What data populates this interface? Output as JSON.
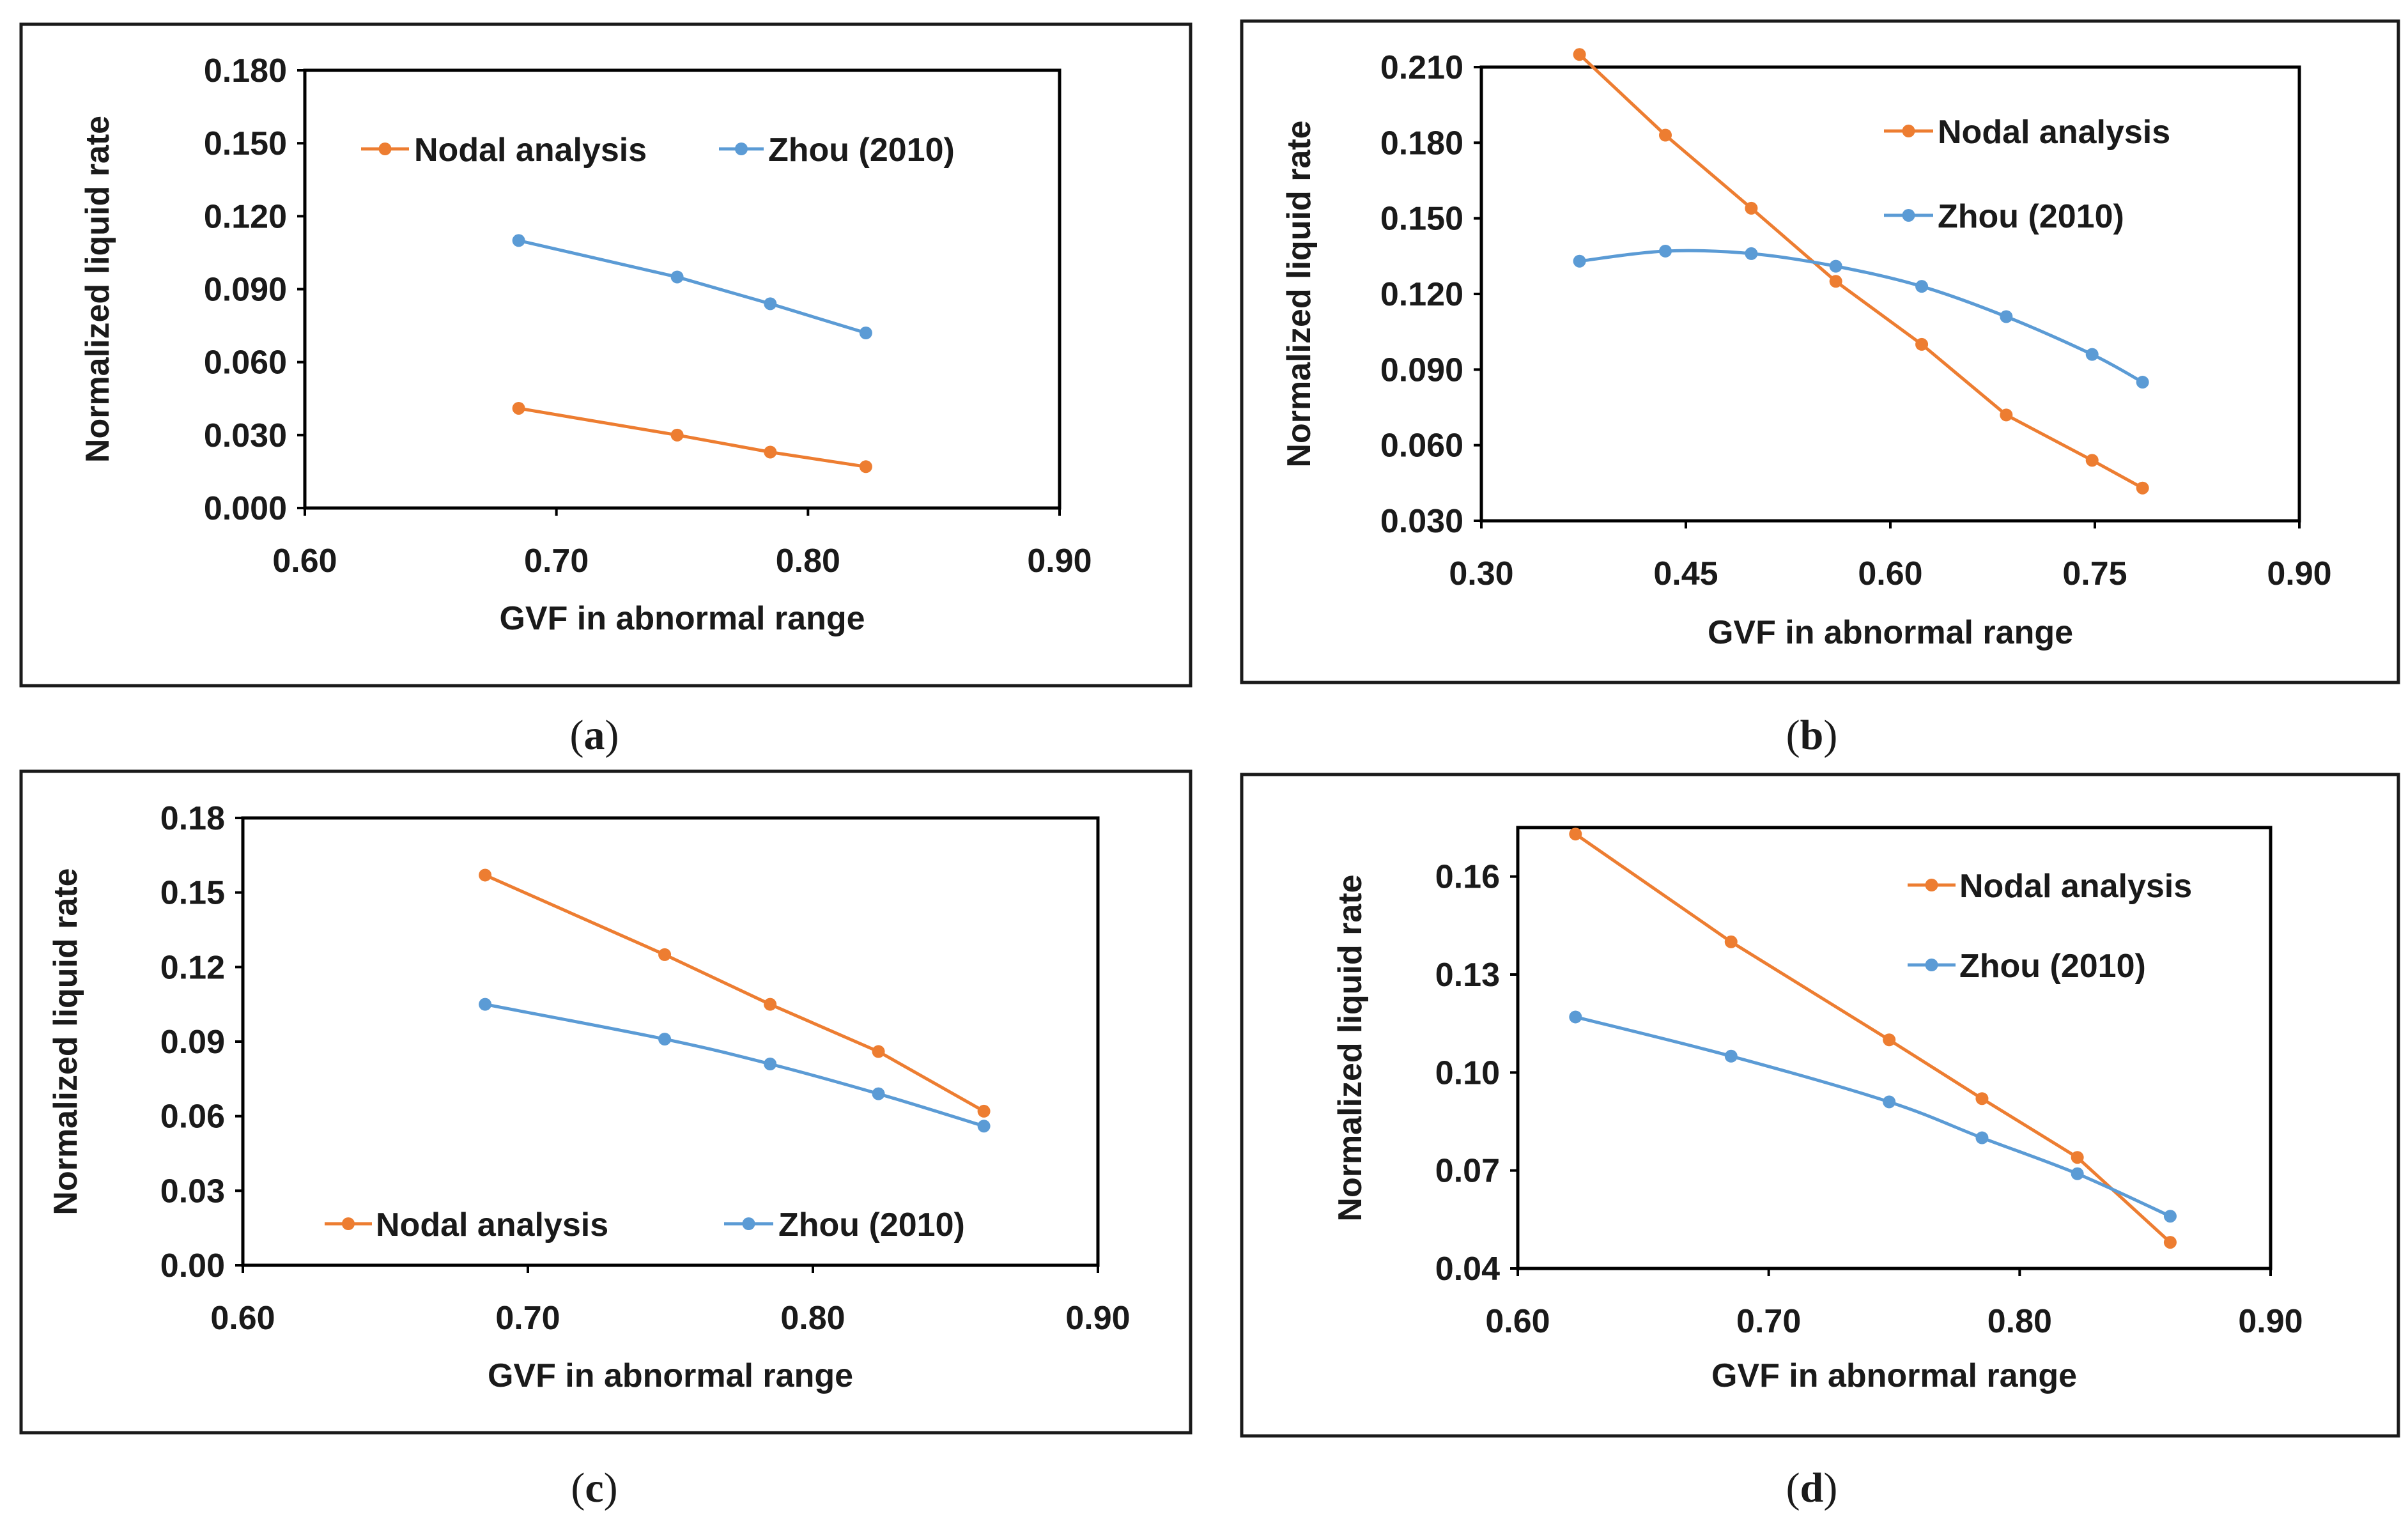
{
  "figure": {
    "series_colors": {
      "Nodal analysis": "#ED7D31",
      "Zhou (2010)": "#5B9BD5"
    }
  },
  "chart_data": [
    {
      "panel": "a",
      "caption": "(a)",
      "caption_letter": "a",
      "type": "line",
      "xlabel": "GVF in abnormal range",
      "ylabel": "Normalized liquid rate",
      "xlim": [
        0.6,
        0.9
      ],
      "ylim": [
        0.0,
        0.18
      ],
      "xticks": [
        "0.60",
        "0.70",
        "0.80",
        "0.90"
      ],
      "yticks": [
        "0.000",
        "0.030",
        "0.060",
        "0.090",
        "0.120",
        "0.150",
        "0.180"
      ],
      "legend_position": "top-inline",
      "series": [
        {
          "name": "Nodal analysis",
          "color": "#ED7D31",
          "smooth": false,
          "x": [
            0.685,
            0.748,
            0.785,
            0.823
          ],
          "y": [
            0.041,
            0.03,
            0.023,
            0.017
          ]
        },
        {
          "name": "Zhou (2010)",
          "color": "#5B9BD5",
          "smooth": false,
          "x": [
            0.685,
            0.748,
            0.785,
            0.823
          ],
          "y": [
            0.11,
            0.095,
            0.084,
            0.072
          ]
        }
      ]
    },
    {
      "panel": "b",
      "caption": "(b)",
      "caption_letter": "b",
      "type": "line",
      "xlabel": "GVF in abnormal range",
      "ylabel": "Normalized liquid rate",
      "xlim": [
        0.3,
        0.9
      ],
      "ylim": [
        0.03,
        0.21
      ],
      "xticks": [
        "0.30",
        "0.45",
        "0.60",
        "0.75",
        "0.90"
      ],
      "yticks": [
        "0.030",
        "0.060",
        "0.090",
        "0.120",
        "0.150",
        "0.180",
        "0.210"
      ],
      "legend_position": "top-right-stacked",
      "series": [
        {
          "name": "Nodal analysis",
          "color": "#ED7D31",
          "smooth": false,
          "x": [
            0.372,
            0.435,
            0.498,
            0.56,
            0.623,
            0.685,
            0.748,
            0.785
          ],
          "y": [
            0.215,
            0.183,
            0.154,
            0.125,
            0.1,
            0.072,
            0.054,
            0.043
          ]
        },
        {
          "name": "Zhou (2010)",
          "color": "#5B9BD5",
          "smooth": true,
          "x": [
            0.372,
            0.435,
            0.498,
            0.56,
            0.623,
            0.685,
            0.748,
            0.785
          ],
          "y": [
            0.133,
            0.137,
            0.136,
            0.131,
            0.123,
            0.111,
            0.096,
            0.085
          ]
        }
      ]
    },
    {
      "panel": "c",
      "caption": "(c)",
      "caption_letter": "c",
      "type": "line",
      "xlabel": "GVF in abnormal range",
      "ylabel": "Normalized liquid rate",
      "xlim": [
        0.6,
        0.9
      ],
      "ylim": [
        0.0,
        0.18
      ],
      "xticks": [
        "0.60",
        "0.70",
        "0.80",
        "0.90"
      ],
      "yticks": [
        "0.00",
        "0.03",
        "0.06",
        "0.09",
        "0.12",
        "0.15",
        "0.18"
      ],
      "legend_position": "bottom-inline",
      "series": [
        {
          "name": "Nodal analysis",
          "color": "#ED7D31",
          "smooth": false,
          "x": [
            0.685,
            0.748,
            0.785,
            0.823,
            0.86
          ],
          "y": [
            0.157,
            0.125,
            0.105,
            0.086,
            0.062
          ]
        },
        {
          "name": "Zhou (2010)",
          "color": "#5B9BD5",
          "smooth": true,
          "x": [
            0.685,
            0.748,
            0.785,
            0.823,
            0.86
          ],
          "y": [
            0.105,
            0.091,
            0.081,
            0.069,
            0.056
          ]
        }
      ]
    },
    {
      "panel": "d",
      "caption": "(d)",
      "caption_letter": "d",
      "type": "line",
      "xlabel": "GVF in abnormal range",
      "ylabel": "Normalized liquid rate",
      "xlim": [
        0.6,
        0.9
      ],
      "ylim": [
        0.04,
        0.175
      ],
      "xticks": [
        "0.60",
        "0.70",
        "0.80",
        "0.90"
      ],
      "yticks": [
        "0.04",
        "0.07",
        "0.10",
        "0.13",
        "0.16"
      ],
      "ytick_values": [
        0.04,
        0.07,
        0.1,
        0.13,
        0.16
      ],
      "legend_position": "top-right-stacked",
      "series": [
        {
          "name": "Nodal analysis",
          "color": "#ED7D31",
          "smooth": false,
          "x": [
            0.623,
            0.685,
            0.748,
            0.785,
            0.823,
            0.86
          ],
          "y": [
            0.173,
            0.14,
            0.11,
            0.092,
            0.074,
            0.048
          ]
        },
        {
          "name": "Zhou (2010)",
          "color": "#5B9BD5",
          "smooth": true,
          "x": [
            0.623,
            0.685,
            0.748,
            0.785,
            0.823,
            0.86
          ],
          "y": [
            0.117,
            0.105,
            0.091,
            0.08,
            0.069,
            0.056
          ]
        }
      ]
    }
  ]
}
